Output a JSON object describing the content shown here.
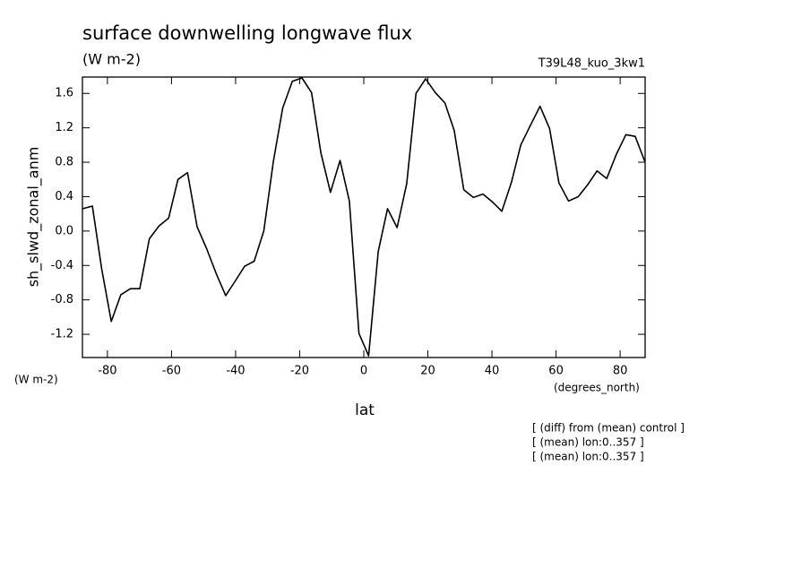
{
  "chart_data": {
    "type": "line",
    "title": "surface downwelling longwave flux",
    "units_top": "(W m-2)",
    "run_label": "T39L48_kuo_3kw1",
    "y_label": "sh_slwd_zonal_anm",
    "y_units": "(W m-2)",
    "x_units": "(degrees_north)",
    "x_label": "lat",
    "notes": [
      "[ (diff) from (mean) control ]",
      "[ (mean) lon:0..357 ]",
      "[ (mean) lon:0..357 ]"
    ],
    "x": [
      -87.7,
      -84.7,
      -81.8,
      -78.8,
      -75.8,
      -72.8,
      -69.9,
      -66.9,
      -63.9,
      -60.9,
      -58.0,
      -55.0,
      -52.0,
      -49.0,
      -46.1,
      -43.1,
      -40.1,
      -37.2,
      -34.2,
      -31.2,
      -28.2,
      -25.3,
      -22.3,
      -19.3,
      -16.3,
      -13.4,
      -10.4,
      -7.4,
      -4.5,
      -1.5,
      1.5,
      4.5,
      7.4,
      10.4,
      13.4,
      16.3,
      19.3,
      22.3,
      25.3,
      28.2,
      31.2,
      34.2,
      37.2,
      40.1,
      43.1,
      46.1,
      49.0,
      52.0,
      55.0,
      58.0,
      60.9,
      63.9,
      66.9,
      69.9,
      72.8,
      75.8,
      78.8,
      81.8,
      84.7,
      87.7
    ],
    "series": [
      {
        "name": "sh_slwd_zonal_anm",
        "color": "#000000",
        "values": [
          0.26,
          0.29,
          -0.44,
          -1.05,
          -0.74,
          -0.67,
          -0.67,
          -0.09,
          0.06,
          0.15,
          0.6,
          0.68,
          0.05,
          -0.21,
          -0.49,
          -0.75,
          -0.58,
          -0.41,
          -0.35,
          0.0,
          0.81,
          1.43,
          1.74,
          1.78,
          1.61,
          0.91,
          0.45,
          0.82,
          0.35,
          -1.19,
          -1.45,
          -0.24,
          0.26,
          0.04,
          0.55,
          1.6,
          1.77,
          1.61,
          1.49,
          1.17,
          0.48,
          0.39,
          0.43,
          0.34,
          0.23,
          0.57,
          1.0,
          1.23,
          1.45,
          1.19,
          0.56,
          0.35,
          0.4,
          0.54,
          0.7,
          0.61,
          0.89,
          1.12,
          1.1,
          0.81
        ]
      }
    ],
    "xlim": [
      -87.8,
      87.8
    ],
    "ylim": [
      -1.47,
      1.79
    ],
    "xticks": [
      -80,
      -60,
      -40,
      -20,
      0,
      20,
      40,
      60,
      80
    ],
    "yticks": [
      -1.2,
      -0.8,
      -0.4,
      {
        "value": 0,
        "label": "0.0"
      },
      0.4,
      0.8,
      1.2,
      1.6
    ]
  }
}
